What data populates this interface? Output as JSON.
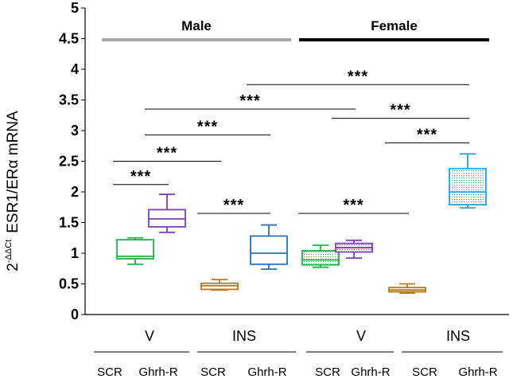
{
  "chart_data": {
    "type": "box",
    "ylabel_prefix": "2",
    "ylabel_superscript": "-ΔΔCt",
    "ylabel_main": "ESR1/ERα mRNA",
    "ylim": [
      0,
      5
    ],
    "yticks": [
      "0",
      "0.5",
      "1",
      "1.5",
      "2",
      "2.5",
      "3",
      "3.5",
      "4",
      "4.5",
      "5"
    ],
    "sex_groups": [
      {
        "label": "Male",
        "color": "#a6a6a6"
      },
      {
        "label": "Female",
        "color": "#000000"
      }
    ],
    "treatment_labels": [
      "V",
      "INS",
      "V",
      "INS"
    ],
    "genotype_labels": [
      "SCR",
      "Ghrh-R",
      "SCR",
      "Ghrh-R",
      "SCR",
      "Ghrh-R",
      "SCR",
      "Ghrh-R"
    ],
    "series": [
      {
        "name": "Male V SCR",
        "min": 0.82,
        "q1": 0.91,
        "median": 0.95,
        "q3": 1.22,
        "max": 1.25,
        "color": "#22b34a",
        "fill": "none"
      },
      {
        "name": "Male V Ghrh-R",
        "min": 1.34,
        "q1": 1.43,
        "median": 1.56,
        "q3": 1.71,
        "max": 1.96,
        "color": "#7e3fb8",
        "fill": "none"
      },
      {
        "name": "Male INS SCR",
        "min": 0.4,
        "q1": 0.41,
        "median": 0.47,
        "q3": 0.51,
        "max": 0.57,
        "color": "#b87a1e",
        "fill": "none"
      },
      {
        "name": "Male INS Ghrh-R",
        "min": 0.74,
        "q1": 0.82,
        "median": 1.0,
        "q3": 1.28,
        "max": 1.46,
        "color": "#2e6fb5",
        "fill": "none"
      },
      {
        "name": "Female V SCR",
        "min": 0.77,
        "q1": 0.81,
        "median": 0.89,
        "q3": 1.04,
        "max": 1.13,
        "color": "#22b34a",
        "fill": "dotted"
      },
      {
        "name": "Female V Ghrh-R",
        "min": 0.92,
        "q1": 1.02,
        "median": 1.09,
        "q3": 1.16,
        "max": 1.21,
        "color": "#7e3fb8",
        "fill": "dotted"
      },
      {
        "name": "Female INS SCR",
        "min": 0.35,
        "q1": 0.37,
        "median": 0.4,
        "q3": 0.44,
        "max": 0.5,
        "color": "#b87a1e",
        "fill": "dotted"
      },
      {
        "name": "Female INS Ghrh-R",
        "min": 1.74,
        "q1": 1.79,
        "median": 2.0,
        "q3": 2.38,
        "max": 2.62,
        "color": "#1ea7e0",
        "fill": "dotted"
      }
    ],
    "significance": [
      {
        "from": 0,
        "to": 1,
        "y": 2.12,
        "label": "***"
      },
      {
        "from": 0,
        "to": 2,
        "y": 2.5,
        "label": "***"
      },
      {
        "from": 1,
        "to": 3,
        "y": 2.93,
        "label": "***"
      },
      {
        "from": 1,
        "to": 5,
        "y": 3.35,
        "label": "***"
      },
      {
        "from": 2,
        "to": 3,
        "y": 1.65,
        "label": "***"
      },
      {
        "from": 3,
        "to": 7,
        "y": 3.75,
        "label": "***"
      },
      {
        "from": 4,
        "to": 6,
        "y": 1.65,
        "label": "***"
      },
      {
        "from": 5,
        "to": 7,
        "y": 3.2,
        "label": "***"
      },
      {
        "from": 6,
        "to": 7,
        "y": 2.8,
        "label": "***"
      }
    ]
  }
}
